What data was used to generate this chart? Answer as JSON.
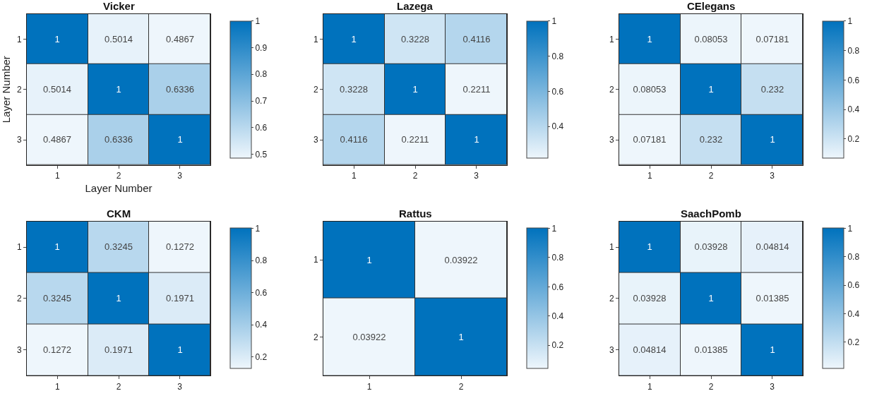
{
  "chart_data": [
    {
      "type": "heatmap",
      "title": "Vicker",
      "xlabel": "Layer Number",
      "ylabel": "Layer Number",
      "categories": [
        "1",
        "2",
        "3"
      ],
      "y_categories": [
        "1",
        "2",
        "3"
      ],
      "cells": [
        [
          1,
          0.5014,
          0.4867
        ],
        [
          0.5014,
          1,
          0.6336
        ],
        [
          0.4867,
          0.6336,
          1
        ]
      ],
      "clim": [
        0.4867,
        1
      ],
      "cticks": [
        0.5,
        0.6,
        0.7,
        0.8,
        0.9,
        1
      ],
      "data_labels": true
    },
    {
      "type": "heatmap",
      "title": "Lazega",
      "categories": [
        "1",
        "2",
        "3"
      ],
      "y_categories": [
        "1",
        "2",
        "3"
      ],
      "cells": [
        [
          1,
          0.3228,
          0.4116
        ],
        [
          0.3228,
          1,
          0.2211
        ],
        [
          0.4116,
          0.2211,
          1
        ]
      ],
      "clim": [
        0.2211,
        1
      ],
      "cticks": [
        0.4,
        0.6,
        0.8,
        1
      ],
      "data_labels": true
    },
    {
      "type": "heatmap",
      "title": "CElegans",
      "categories": [
        "1",
        "2",
        "3"
      ],
      "y_categories": [
        "1",
        "2",
        "3"
      ],
      "cells": [
        [
          1,
          0.08053,
          0.07181
        ],
        [
          0.08053,
          1,
          0.232
        ],
        [
          0.07181,
          0.232,
          1
        ]
      ],
      "clim": [
        0.07181,
        1
      ],
      "cticks": [
        0.2,
        0.4,
        0.6,
        0.8,
        1
      ],
      "data_labels": true
    },
    {
      "type": "heatmap",
      "title": "CKM",
      "categories": [
        "1",
        "2",
        "3"
      ],
      "y_categories": [
        "1",
        "2",
        "3"
      ],
      "cells": [
        [
          1,
          0.3245,
          0.1272
        ],
        [
          0.3245,
          1,
          0.1971
        ],
        [
          0.1272,
          0.1971,
          1
        ]
      ],
      "clim": [
        0.1272,
        1
      ],
      "cticks": [
        0.2,
        0.4,
        0.6,
        0.8,
        1
      ],
      "data_labels": true
    },
    {
      "type": "heatmap",
      "title": "Rattus",
      "categories": [
        "1",
        "2"
      ],
      "y_categories": [
        "1",
        "2"
      ],
      "cells": [
        [
          1,
          0.03922
        ],
        [
          0.03922,
          1
        ]
      ],
      "clim": [
        0.03922,
        1
      ],
      "cticks": [
        0.2,
        0.4,
        0.6,
        0.8,
        1
      ],
      "data_labels": true
    },
    {
      "type": "heatmap",
      "title": "SaachPomb",
      "categories": [
        "1",
        "2",
        "3"
      ],
      "y_categories": [
        "1",
        "2",
        "3"
      ],
      "cells": [
        [
          1,
          0.03928,
          0.04814
        ],
        [
          0.03928,
          1,
          0.01385
        ],
        [
          0.04814,
          0.01385,
          1
        ]
      ],
      "clim": [
        0.01385,
        1
      ],
      "cticks": [
        0.2,
        0.4,
        0.6,
        0.8,
        1
      ],
      "data_labels": true
    }
  ]
}
